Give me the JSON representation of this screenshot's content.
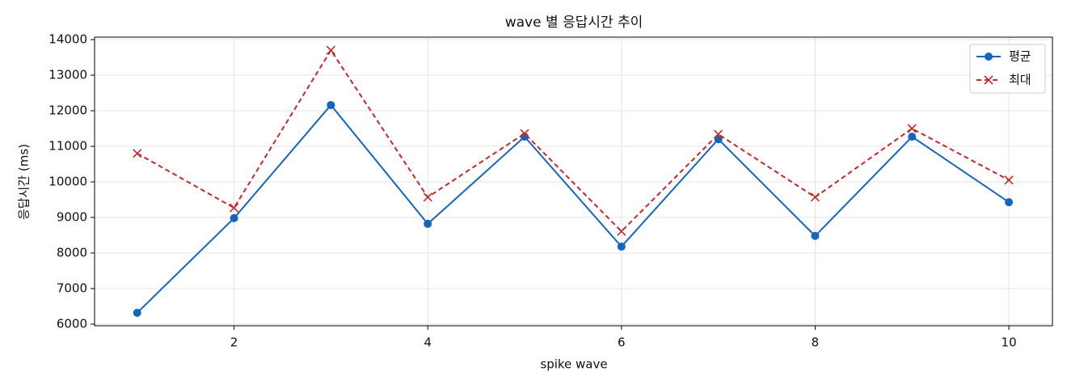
{
  "chart_data": {
    "type": "line",
    "title": "wave 별 응답시간 추이",
    "x_label": "spike wave",
    "y_label": "응답시간 (ms)",
    "x": [
      1,
      2,
      3,
      4,
      5,
      6,
      7,
      8,
      9,
      10
    ],
    "series": [
      {
        "name": "평균",
        "color": "#1565c0",
        "marker": "o",
        "linestyle": "solid",
        "values": [
          6320,
          8980,
          12160,
          8820,
          11270,
          8180,
          11200,
          8480,
          11270,
          9430
        ]
      },
      {
        "name": "최대",
        "color": "#c62828",
        "marker": "x",
        "linestyle": "dashed",
        "values": [
          10800,
          9270,
          13700,
          9570,
          11360,
          8610,
          11340,
          9570,
          11500,
          10050
        ]
      }
    ],
    "xlim": [
      0.56,
      10.45
    ],
    "xticks": [
      2,
      4,
      6,
      8,
      10
    ],
    "ylim": [
      5955,
      14068
    ],
    "yticks": [
      6000,
      7000,
      8000,
      9000,
      10000,
      11000,
      12000,
      13000,
      14000
    ],
    "grid": true,
    "legend": "upper right"
  }
}
